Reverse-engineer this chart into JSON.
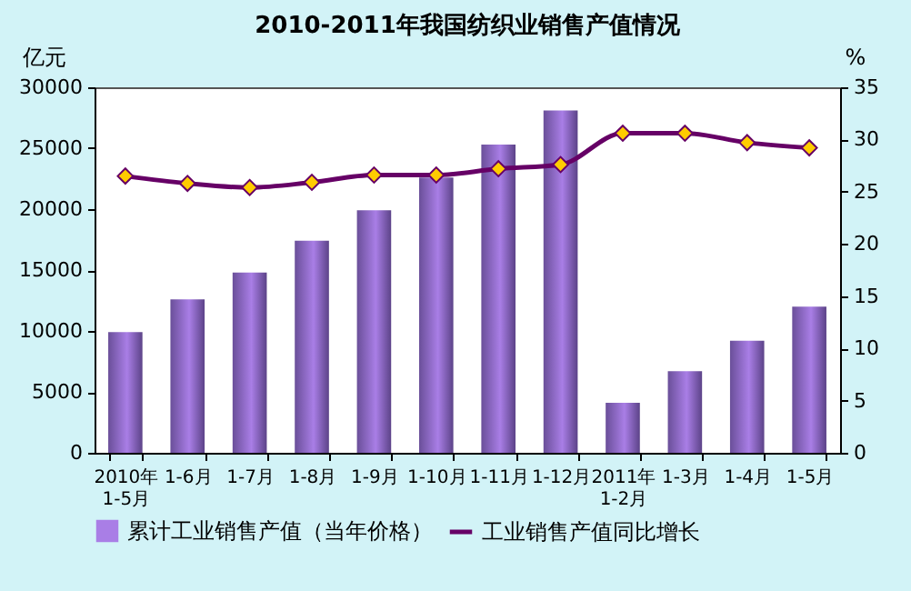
{
  "chart_data": {
    "type": "bar",
    "title": "2010-2011年我国纺织业销售产值情况",
    "ylabel": "亿元",
    "y2label": "%",
    "categories": [
      "2010年\n1-5月",
      "1-6月",
      "1-7月",
      "1-8月",
      "1-9月",
      "1-10月",
      "1-11月",
      "1-12月",
      "2011年\n1-2月",
      "1-3月",
      "1-4月",
      "1-5月"
    ],
    "series": [
      {
        "name": "累计工业销售产值（当年价格）",
        "color": "#a97ee6",
        "values": [
          9900,
          12600,
          14800,
          17400,
          19900,
          22600,
          25300,
          28100,
          4100,
          6700,
          9200,
          12000
        ]
      },
      {
        "name": "工业销售产值同比增长",
        "type": "line",
        "axis": "y2",
        "color": "#660066",
        "marker": "diamond",
        "values": [
          26.5,
          25.8,
          25.4,
          25.9,
          26.6,
          26.6,
          27.2,
          27.6,
          30.6,
          30.6,
          29.7,
          29.2
        ]
      }
    ],
    "ylim": [
      0,
      30000
    ],
    "yticks": [
      0,
      5000,
      10000,
      15000,
      20000,
      25000,
      30000
    ],
    "y2lim": [
      0,
      35
    ],
    "y2ticks": [
      0,
      5,
      10,
      15,
      20,
      25,
      30,
      35
    ],
    "legend": "bottom",
    "grid": false
  }
}
